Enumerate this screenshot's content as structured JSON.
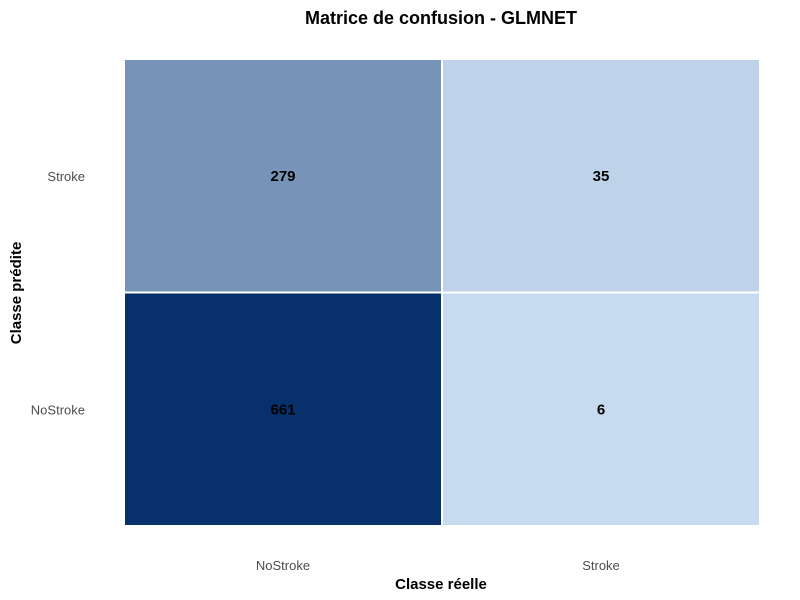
{
  "chart_data": {
    "type": "heatmap",
    "title": "Matrice de confusion - GLMNET",
    "xlabel": "Classe réelle",
    "ylabel": "Classe prédite",
    "x_categories": [
      "NoStroke",
      "Stroke"
    ],
    "y_categories": [
      "Stroke",
      "NoStroke"
    ],
    "cells": [
      {
        "x": "NoStroke",
        "y": "Stroke",
        "value": 279
      },
      {
        "x": "Stroke",
        "y": "Stroke",
        "value": 35
      },
      {
        "x": "NoStroke",
        "y": "NoStroke",
        "value": 661
      },
      {
        "x": "Stroke",
        "y": "NoStroke",
        "value": 6
      }
    ],
    "colors": {
      "low": "#c6dbef",
      "high": "#08306b"
    },
    "grid": false,
    "legend": "none"
  }
}
